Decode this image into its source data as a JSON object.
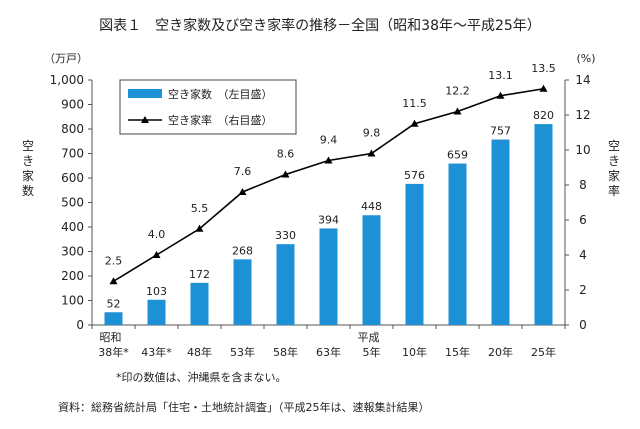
{
  "chart_data": {
    "type": "bar",
    "title": "図表１　空き家数及び空き家率の推移－全国（昭和38年～平成25年）",
    "left_unit": "（万戸）",
    "right_unit": "(%)",
    "left_axis_label": "空き家数",
    "right_axis_label": "空き家率",
    "left_ylim": [
      0,
      1000
    ],
    "left_ticks": [
      "0",
      "100",
      "200",
      "300",
      "400",
      "500",
      "600",
      "700",
      "800",
      "900",
      "1,000"
    ],
    "right_ylim": [
      0,
      14
    ],
    "right_ticks": [
      "0",
      "2",
      "4",
      "6",
      "8",
      "10",
      "12",
      "14"
    ],
    "categories": [
      {
        "era": "昭和",
        "label": "38年*"
      },
      {
        "era": "",
        "label": "43年*"
      },
      {
        "era": "",
        "label": "48年"
      },
      {
        "era": "",
        "label": "53年"
      },
      {
        "era": "",
        "label": "58年"
      },
      {
        "era": "",
        "label": "63年"
      },
      {
        "era": "平成",
        "label": "5年"
      },
      {
        "era": "",
        "label": "10年"
      },
      {
        "era": "",
        "label": "15年"
      },
      {
        "era": "",
        "label": "20年"
      },
      {
        "era": "",
        "label": "25年"
      }
    ],
    "series": [
      {
        "name": "空き家数　（左目盛）",
        "kind": "bar",
        "axis": "left",
        "color": "#1e90d6",
        "values": [
          52,
          103,
          172,
          268,
          330,
          394,
          448,
          576,
          659,
          757,
          820
        ],
        "labels": [
          "52",
          "103",
          "172",
          "268",
          "330",
          "394",
          "448",
          "576",
          "659",
          "757",
          "820"
        ]
      },
      {
        "name": "空き家率　（右目盛）",
        "kind": "line",
        "axis": "right",
        "color": "#000000",
        "values": [
          2.5,
          4.0,
          5.5,
          7.6,
          8.6,
          9.4,
          9.8,
          11.5,
          12.2,
          13.1,
          13.5
        ],
        "labels": [
          "2.5",
          "4.0",
          "5.5",
          "7.6",
          "8.6",
          "9.4",
          "9.8",
          "11.5",
          "12.2",
          "13.1",
          "13.5"
        ]
      }
    ],
    "note": "*印の数値は、沖縄県を含まない。",
    "source": "資料：総務省統計局「住宅・土地統計調査」（平成25年は、速報集計結果）"
  }
}
